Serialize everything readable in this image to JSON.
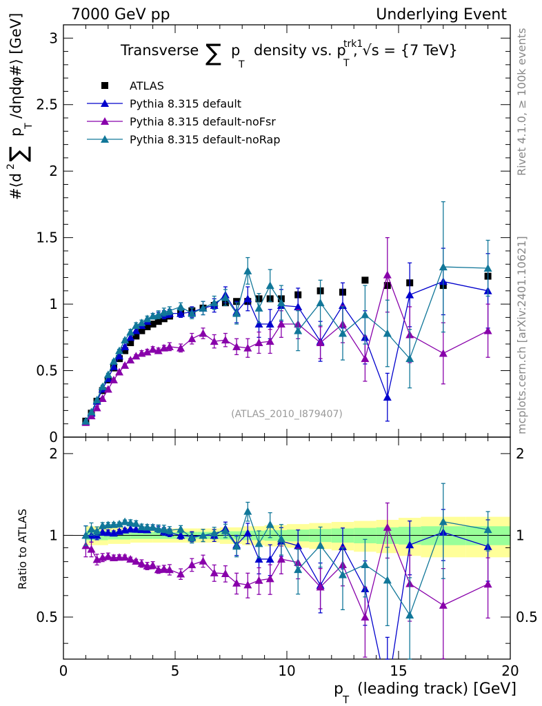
{
  "header": {
    "left": "7000 GeV pp",
    "right": "Underlying Event"
  },
  "side_labels": {
    "top": "Rivet 4.1.0, ≥ 100k events",
    "bottom": "mcplots.cern.ch [arXiv:2401.10621]"
  },
  "chart_data": {
    "type": "scatter",
    "title": "Transverse ∑ pT density vs. pTtrk1, √s = {7 TeV}",
    "title_parts": {
      "prefix": "Transverse",
      "sum": "∑",
      "p": "p",
      "sub_T": "T",
      "mid": "density vs. p",
      "sup_trk1": "trk1",
      "suffix": ", √s = {7 TeV}"
    },
    "watermark": "(ATLAS_2010_I879407)",
    "xlabel": {
      "p": "p",
      "sub": "T",
      "rest": "(leading track) [GeV]"
    },
    "ylabel": {
      "a": "#⟨d",
      "sup2": "2",
      "sum": "∑",
      "p": "p",
      "sub": "T",
      "b": "/dηdφ#⟩ [GeV]"
    },
    "ratio_ylabel": "Ratio to ATLAS",
    "xlim": [
      0,
      20
    ],
    "ylim": [
      0,
      3.1
    ],
    "ratio_ylim": [
      0.35,
      2.3
    ],
    "x_ticks": [
      "0",
      "5",
      "10",
      "15",
      "20"
    ],
    "y_ticks": [
      "0",
      "0.5",
      "1",
      "1.5",
      "2",
      "2.5",
      "3"
    ],
    "ratio_ticks": [
      "0.5",
      "1",
      "2"
    ],
    "x": [
      1.0,
      1.25,
      1.5,
      1.75,
      2.0,
      2.25,
      2.5,
      2.75,
      3.0,
      3.25,
      3.5,
      3.75,
      4.0,
      4.25,
      4.5,
      4.75,
      5.25,
      5.75,
      6.25,
      6.75,
      7.25,
      7.75,
      8.25,
      8.75,
      9.25,
      9.75,
      10.5,
      11.5,
      12.5,
      13.5,
      14.5,
      15.5,
      17.0,
      19.0
    ],
    "series": [
      {
        "name": "ATLAS",
        "color": "#000000",
        "marker": "square",
        "values": [
          0.12,
          0.18,
          0.27,
          0.35,
          0.43,
          0.52,
          0.59,
          0.65,
          0.71,
          0.76,
          0.8,
          0.83,
          0.85,
          0.87,
          0.89,
          0.91,
          0.93,
          0.95,
          0.97,
          0.99,
          1.01,
          1.02,
          1.02,
          1.04,
          1.04,
          1.04,
          1.07,
          1.1,
          1.09,
          1.18,
          1.14,
          1.16,
          1.14,
          1.21
        ],
        "errors": [
          0.005,
          0.005,
          0.005,
          0.005,
          0.005,
          0.005,
          0.005,
          0.005,
          0.005,
          0.005,
          0.005,
          0.005,
          0.005,
          0.005,
          0.005,
          0.005,
          0.005,
          0.005,
          0.005,
          0.005,
          0.005,
          0.005,
          0.005,
          0.005,
          0.005,
          0.005,
          0.005,
          0.005,
          0.005,
          0.005,
          0.005,
          0.005,
          0.005,
          0.005
        ]
      },
      {
        "name": "Pythia 8.315 default",
        "color": "#0000cc",
        "marker": "triangle",
        "values": [
          0.12,
          0.18,
          0.27,
          0.36,
          0.44,
          0.53,
          0.61,
          0.68,
          0.75,
          0.8,
          0.84,
          0.87,
          0.91,
          0.92,
          0.92,
          0.93,
          0.93,
          0.94,
          0.97,
          0.99,
          1.07,
          0.94,
          1.04,
          0.85,
          0.85,
          0.99,
          0.98,
          0.72,
          0.99,
          0.75,
          0.3,
          1.07,
          1.17,
          1.1
        ],
        "errors": [
          0.01,
          0.01,
          0.01,
          0.01,
          0.01,
          0.01,
          0.01,
          0.01,
          0.02,
          0.02,
          0.02,
          0.02,
          0.02,
          0.02,
          0.03,
          0.03,
          0.03,
          0.04,
          0.05,
          0.05,
          0.06,
          0.08,
          0.09,
          0.1,
          0.11,
          0.12,
          0.14,
          0.15,
          0.17,
          0.2,
          0.18,
          0.24,
          0.25,
          0.28
        ]
      },
      {
        "name": "Pythia 8.315 default-noFsr",
        "color": "#8800aa",
        "marker": "triangle",
        "values": [
          0.11,
          0.16,
          0.22,
          0.29,
          0.36,
          0.43,
          0.49,
          0.54,
          0.58,
          0.61,
          0.63,
          0.64,
          0.66,
          0.65,
          0.67,
          0.68,
          0.67,
          0.74,
          0.78,
          0.72,
          0.73,
          0.68,
          0.67,
          0.71,
          0.72,
          0.85,
          0.85,
          0.71,
          0.85,
          0.59,
          1.22,
          0.77,
          0.63,
          0.8
        ],
        "errors": [
          0.01,
          0.01,
          0.01,
          0.01,
          0.01,
          0.01,
          0.01,
          0.01,
          0.01,
          0.01,
          0.02,
          0.02,
          0.02,
          0.02,
          0.02,
          0.03,
          0.03,
          0.04,
          0.04,
          0.05,
          0.05,
          0.06,
          0.07,
          0.08,
          0.09,
          0.1,
          0.11,
          0.12,
          0.14,
          0.17,
          0.28,
          0.21,
          0.23,
          0.2
        ]
      },
      {
        "name": "Pythia 8.315 default-noRap",
        "color": "#117799",
        "marker": "triangle",
        "values": [
          0.12,
          0.19,
          0.28,
          0.38,
          0.47,
          0.57,
          0.65,
          0.73,
          0.79,
          0.84,
          0.86,
          0.89,
          0.91,
          0.92,
          0.94,
          0.95,
          0.98,
          0.93,
          0.97,
          1.01,
          1.05,
          0.93,
          1.25,
          0.97,
          1.14,
          1.01,
          0.8,
          1.01,
          0.78,
          0.92,
          0.78,
          0.59,
          1.28,
          1.27
        ],
        "errors": [
          0.01,
          0.01,
          0.01,
          0.01,
          0.01,
          0.01,
          0.01,
          0.01,
          0.02,
          0.02,
          0.02,
          0.02,
          0.02,
          0.03,
          0.03,
          0.03,
          0.03,
          0.04,
          0.05,
          0.05,
          0.06,
          0.08,
          0.1,
          0.11,
          0.12,
          0.13,
          0.15,
          0.17,
          0.2,
          0.22,
          0.25,
          0.22,
          0.49,
          0.21
        ]
      }
    ],
    "ratio_band": {
      "x_edges": [
        1.0,
        2.0,
        3.0,
        4.0,
        5.0,
        6.0,
        7.0,
        8.0,
        9.0,
        10.0,
        11.0,
        12.0,
        13.0,
        14.0,
        15.0,
        16.0,
        18.0,
        20.0
      ],
      "inner": [
        0.04,
        0.035,
        0.03,
        0.03,
        0.03,
        0.03,
        0.035,
        0.04,
        0.045,
        0.05,
        0.055,
        0.06,
        0.065,
        0.07,
        0.075,
        0.08,
        0.08
      ],
      "outer": [
        0.08,
        0.07,
        0.06,
        0.06,
        0.06,
        0.06,
        0.07,
        0.08,
        0.09,
        0.1,
        0.11,
        0.12,
        0.13,
        0.14,
        0.16,
        0.17,
        0.17
      ],
      "inner_color": "#99ff99",
      "outer_color": "#ffff99"
    }
  }
}
